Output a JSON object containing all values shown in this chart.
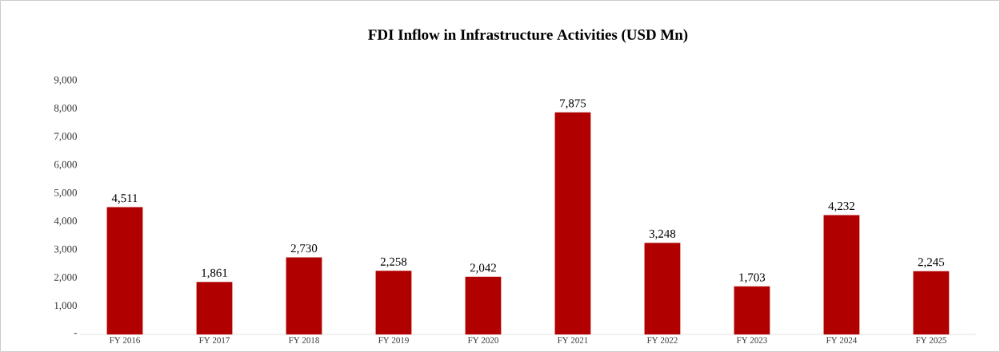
{
  "chart_data": {
    "type": "bar",
    "title": "FDI Inflow in Infrastructure  Activities  (USD Mn)",
    "categories": [
      "FY 2016",
      "FY 2017",
      "FY 2018",
      "FY 2019",
      "FY 2020",
      "FY 2021",
      "FY 2022",
      "FY 2023",
      "FY 2024",
      "FY 2025"
    ],
    "values": [
      4511,
      1861,
      2730,
      2258,
      2042,
      7875,
      3248,
      1703,
      4232,
      2245
    ],
    "value_labels": [
      "4,511",
      "1,861",
      "2,730",
      "2,258",
      "2,042",
      "7,875",
      "3,248",
      "1,703",
      "4,232",
      "2,245"
    ],
    "color": "#b00000",
    "ylim": [
      0,
      9000
    ],
    "yticks": [
      {
        "value": 0,
        "label": "-"
      },
      {
        "value": 1000,
        "label": "1,000"
      },
      {
        "value": 2000,
        "label": "2,000"
      },
      {
        "value": 3000,
        "label": "3,000"
      },
      {
        "value": 4000,
        "label": "4,000"
      },
      {
        "value": 5000,
        "label": "5,000"
      },
      {
        "value": 6000,
        "label": "6,000"
      },
      {
        "value": 7000,
        "label": "7,000"
      },
      {
        "value": 8000,
        "label": "8,000"
      },
      {
        "value": 9000,
        "label": "9,000"
      }
    ],
    "tick_labels": true
  }
}
